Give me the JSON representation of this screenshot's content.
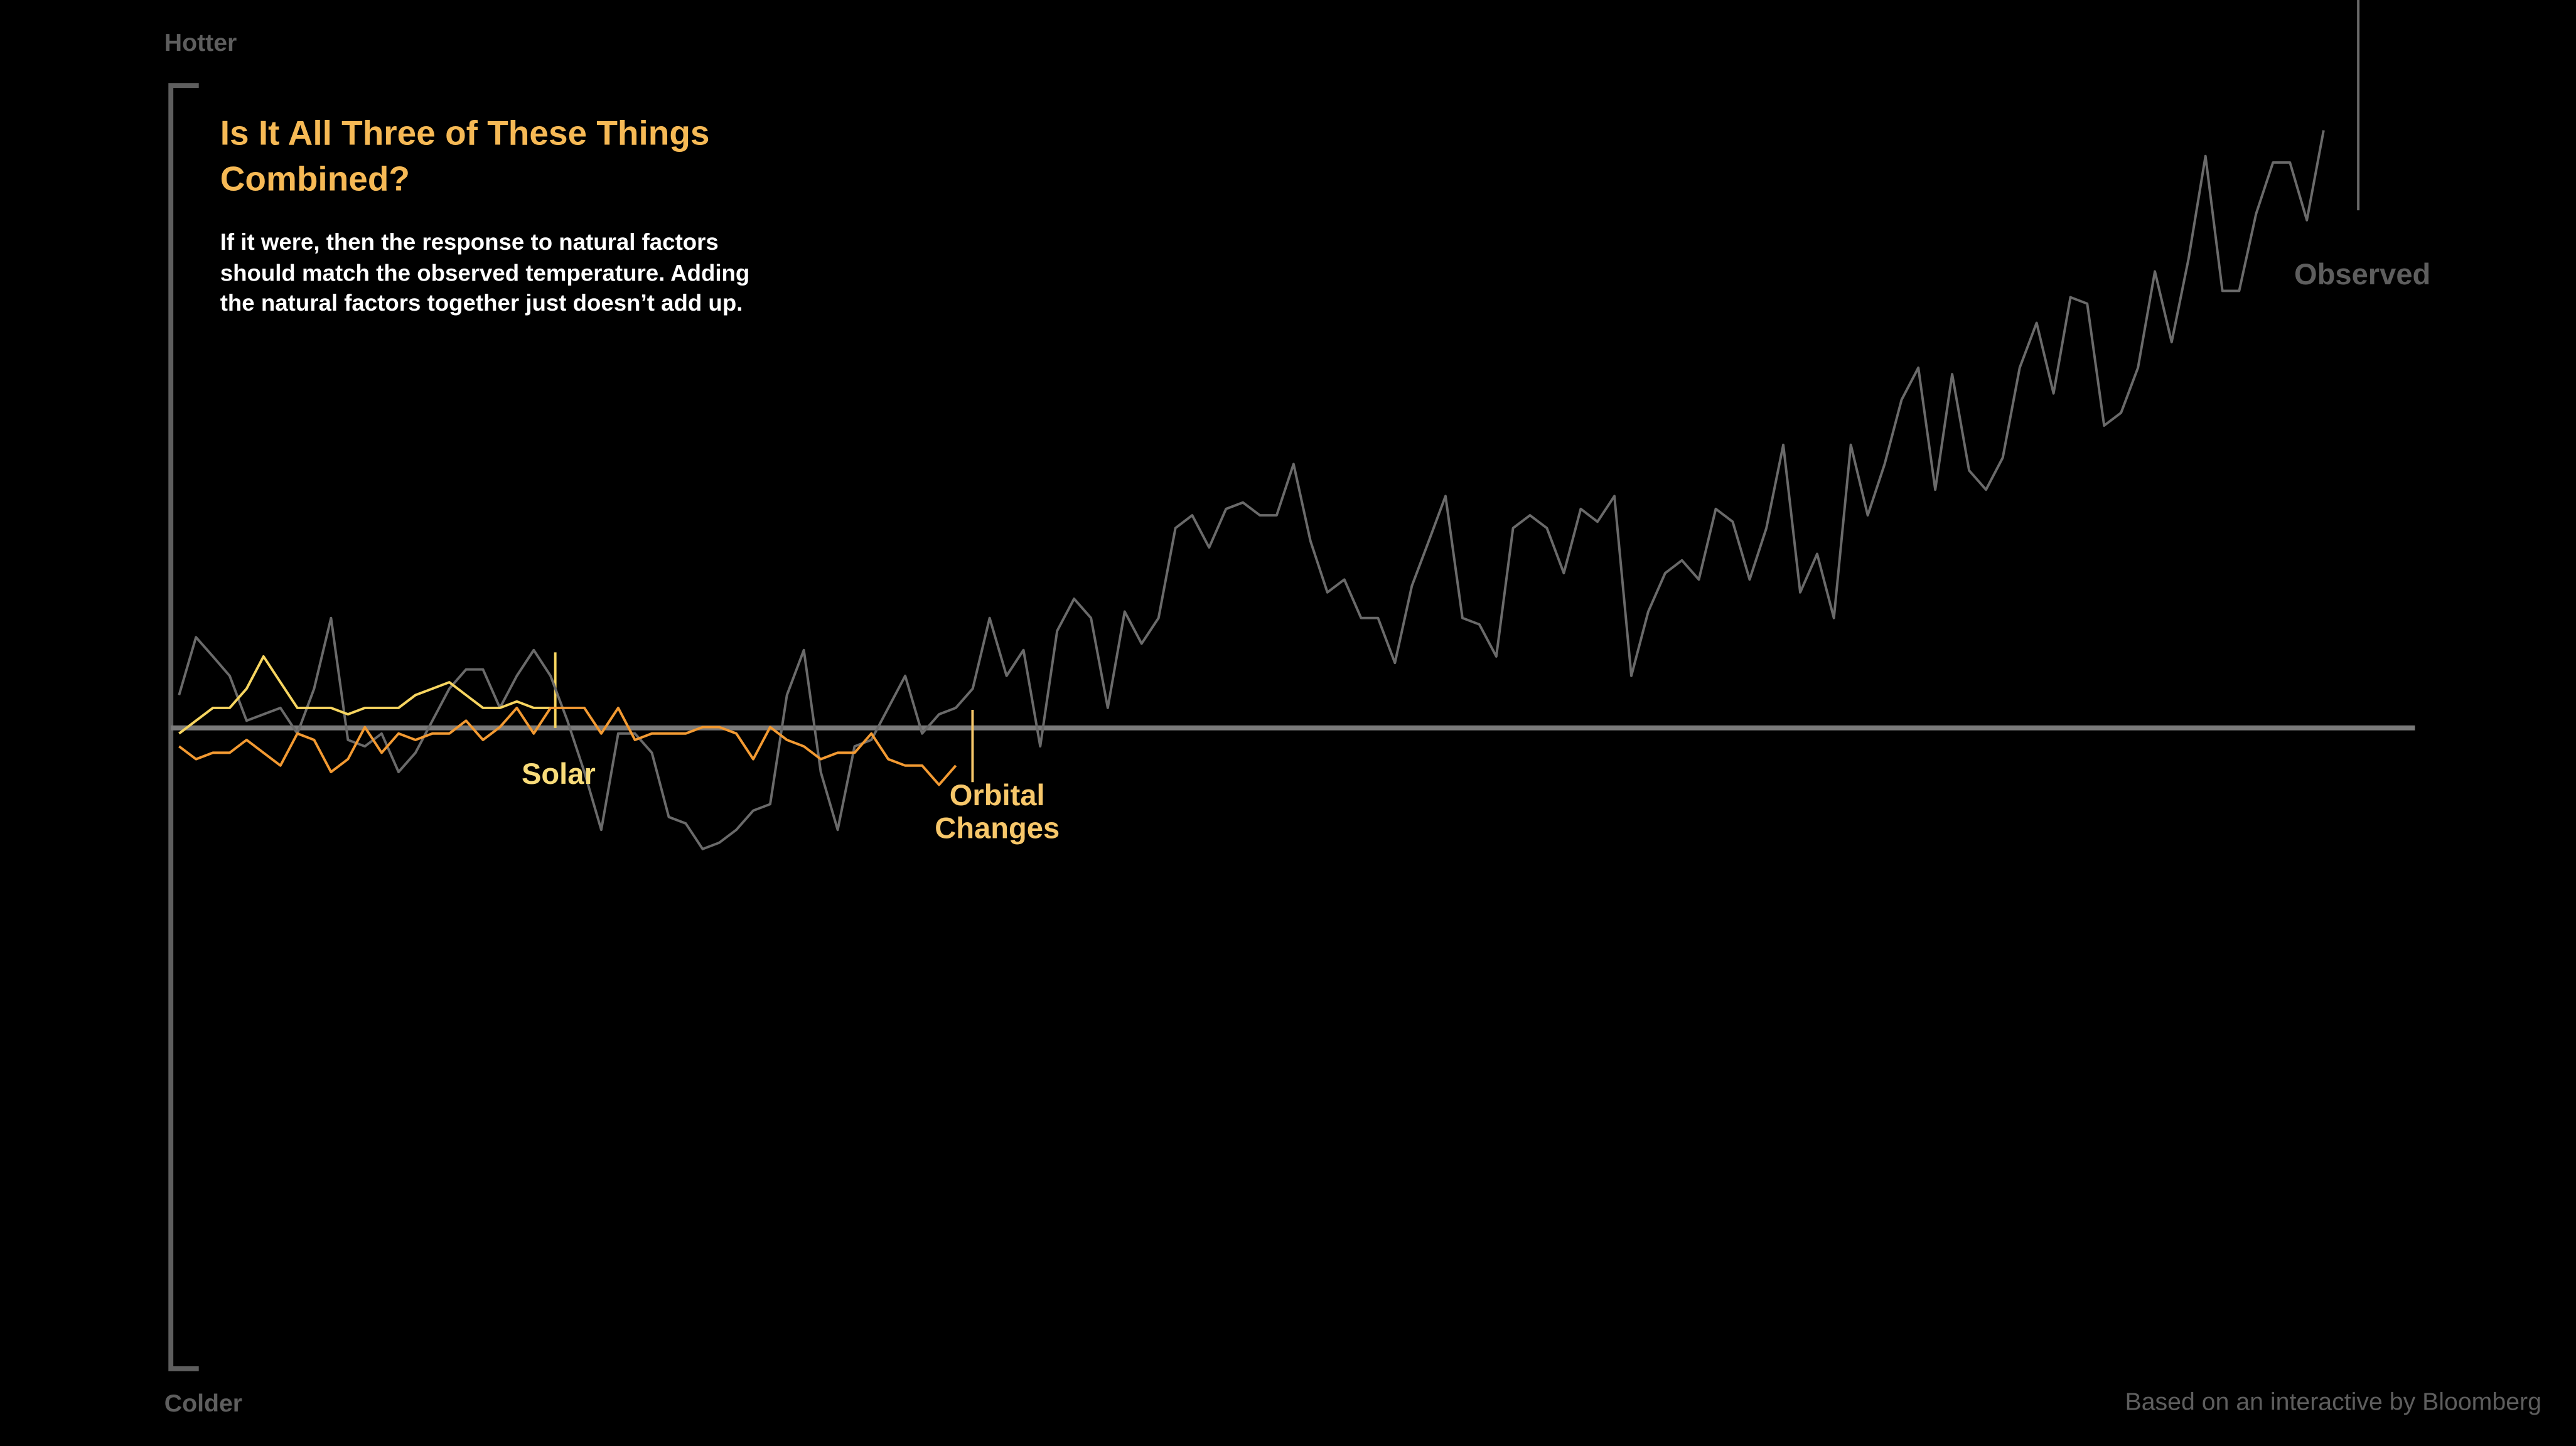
{
  "chart_data": {
    "type": "line",
    "title": "Is It All Three of These Things Combined?",
    "subtitle": "If it were, then the response to natural factors should match the observed temperature. Adding the natural factors together just doesn’t add up.",
    "ylabel_top": "Hotter",
    "ylabel_bottom": "Colder",
    "source": "Based on an interactive by Bloomberg",
    "ylim": [
      -1,
      1
    ],
    "series": [
      {
        "name": "Observed",
        "color": "#6a6a6a",
        "values": [
          0.05,
          0.14,
          0.11,
          0.08,
          0.01,
          0.02,
          0.03,
          -0.01,
          0.06,
          0.17,
          -0.02,
          -0.03,
          -0.01,
          -0.07,
          -0.04,
          0.01,
          0.06,
          0.09,
          0.09,
          0.03,
          0.08,
          0.12,
          0.08,
          0.01,
          -0.07,
          -0.16,
          -0.01,
          -0.01,
          -0.04,
          -0.14,
          -0.15,
          -0.19,
          -0.18,
          -0.16,
          -0.13,
          -0.12,
          0.05,
          0.12,
          -0.07,
          -0.16,
          -0.03,
          -0.02,
          0.03,
          0.08,
          -0.01,
          0.02,
          0.03,
          0.06,
          0.17,
          0.08,
          0.12,
          -0.03,
          0.15,
          0.2,
          0.17,
          0.03,
          0.18,
          0.13,
          0.17,
          0.31,
          0.33,
          0.28,
          0.34,
          0.35,
          0.33,
          0.33,
          0.41,
          0.29,
          0.21,
          0.23,
          0.17,
          0.17,
          0.1,
          0.22,
          0.29,
          0.36,
          0.17,
          0.16,
          0.11,
          0.31,
          0.33,
          0.31,
          0.24,
          0.34,
          0.32,
          0.36,
          0.08,
          0.18,
          0.24,
          0.26,
          0.23,
          0.34,
          0.32,
          0.23,
          0.31,
          0.44,
          0.21,
          0.27,
          0.17,
          0.44,
          0.33,
          0.41,
          0.51,
          0.56,
          0.37,
          0.55,
          0.4,
          0.37,
          0.42,
          0.56,
          0.63,
          0.52,
          0.67,
          0.66,
          0.47,
          0.49,
          0.56,
          0.71,
          0.6,
          0.73,
          0.89,
          0.68,
          0.68,
          0.8,
          0.88,
          0.88,
          0.79,
          0.93
        ]
      },
      {
        "name": "Solar",
        "color": "#f7d560",
        "values": [
          -0.01,
          0.01,
          0.03,
          0.03,
          0.06,
          0.11,
          0.07,
          0.03,
          0.03,
          0.03,
          0.02,
          0.03,
          0.03,
          0.03,
          0.05,
          0.06,
          0.07,
          0.05,
          0.03,
          0.03,
          0.04,
          0.03,
          0.03,
          null,
          null,
          null,
          null,
          null,
          null,
          null,
          null,
          null,
          null,
          null,
          null,
          null,
          null,
          null,
          null,
          null,
          null,
          null,
          null,
          null,
          null,
          null,
          null,
          null,
          null,
          null,
          null,
          null,
          null,
          null,
          null,
          null,
          null,
          null,
          null,
          null,
          null,
          null,
          null,
          null,
          null,
          null,
          null,
          null,
          null,
          null,
          null,
          null,
          null,
          null,
          null,
          null,
          null,
          null,
          null,
          null,
          null,
          null,
          null,
          null,
          null,
          null,
          null,
          null,
          null,
          null,
          null,
          null,
          null,
          null,
          null,
          null,
          null,
          null,
          null,
          null,
          null,
          null,
          null,
          null,
          null,
          null,
          null,
          null,
          null,
          null,
          null,
          null,
          null,
          null,
          null,
          null,
          null,
          null,
          null,
          null,
          null,
          null,
          null,
          null,
          null,
          null,
          null,
          null
        ]
      },
      {
        "name": "Orbital Changes",
        "color": "#f39a32",
        "values": [
          -0.03,
          -0.05,
          -0.04,
          -0.04,
          -0.02,
          -0.04,
          -0.06,
          -0.01,
          -0.02,
          -0.07,
          -0.05,
          0,
          -0.04,
          -0.01,
          -0.02,
          -0.01,
          -0.01,
          0.01,
          -0.02,
          0,
          0.03,
          -0.01,
          0.03,
          0.03,
          0.03,
          -0.01,
          0.03,
          -0.02,
          -0.01,
          -0.01,
          -0.01,
          0,
          0,
          -0.01,
          -0.05,
          0,
          -0.02,
          -0.03,
          -0.05,
          -0.04,
          -0.04,
          -0.01,
          -0.05,
          -0.06,
          -0.06,
          -0.09,
          -0.06,
          null,
          null,
          null,
          null,
          null,
          null,
          null,
          null,
          null,
          null,
          null,
          null,
          null,
          null,
          null,
          null,
          null,
          null,
          null,
          null,
          null,
          null,
          null,
          null,
          null,
          null,
          null,
          null,
          null,
          null,
          null,
          null,
          null,
          null,
          null,
          null,
          null,
          null,
          null,
          null,
          null,
          null,
          null,
          null,
          null,
          null,
          null,
          null,
          null,
          null,
          null,
          null,
          null,
          null,
          null,
          null,
          null,
          null,
          null,
          null,
          null,
          null,
          null,
          null,
          null,
          null,
          null,
          null,
          null,
          null,
          null,
          null,
          null,
          null,
          null,
          null,
          null,
          null,
          null,
          null,
          null,
          null,
          null
        ]
      }
    ]
  }
}
